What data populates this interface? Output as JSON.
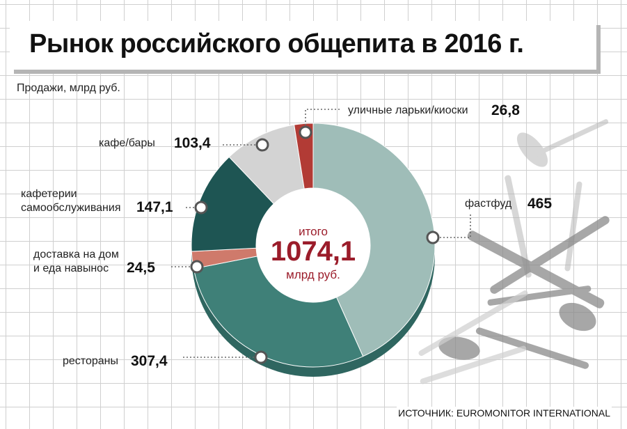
{
  "header": {
    "title": "Рынок российского общепита в 2016 г.",
    "subtitle": "Продажи, млрд руб.",
    "source": "ИСТОЧНИК: EUROMONITOR INTERNATIONAL"
  },
  "chart_data": {
    "type": "pie",
    "donut": true,
    "title": "Рынок российского общепита в 2016 г.",
    "unit": "млрд руб.",
    "total": {
      "label": "итого",
      "value": "1074,1",
      "unit": "млрд руб."
    },
    "slices": [
      {
        "name": "фастфуд",
        "value": 465,
        "display": "465",
        "color": "#9fbdb8"
      },
      {
        "name": "рестораны",
        "value": 307.4,
        "display": "307,4",
        "color": "#3f8078"
      },
      {
        "name": "доставка на дом и еда навынос",
        "lines": [
          "доставка на дом",
          "и еда навынос"
        ],
        "value": 24.5,
        "display": "24,5",
        "color": "#cf7a6b"
      },
      {
        "name": "кафетерии самообслуживания",
        "lines": [
          "кафетерии",
          "самообслуживания"
        ],
        "value": 147.1,
        "display": "147,1",
        "color": "#1e5553"
      },
      {
        "name": "кафе/бары",
        "value": 103.4,
        "display": "103,4",
        "color": "#d3d3d3"
      },
      {
        "name": "уличные ларьки/киоски",
        "value": 26.8,
        "display": "26,8",
        "color": "#b23b35"
      }
    ],
    "legend": "none"
  }
}
